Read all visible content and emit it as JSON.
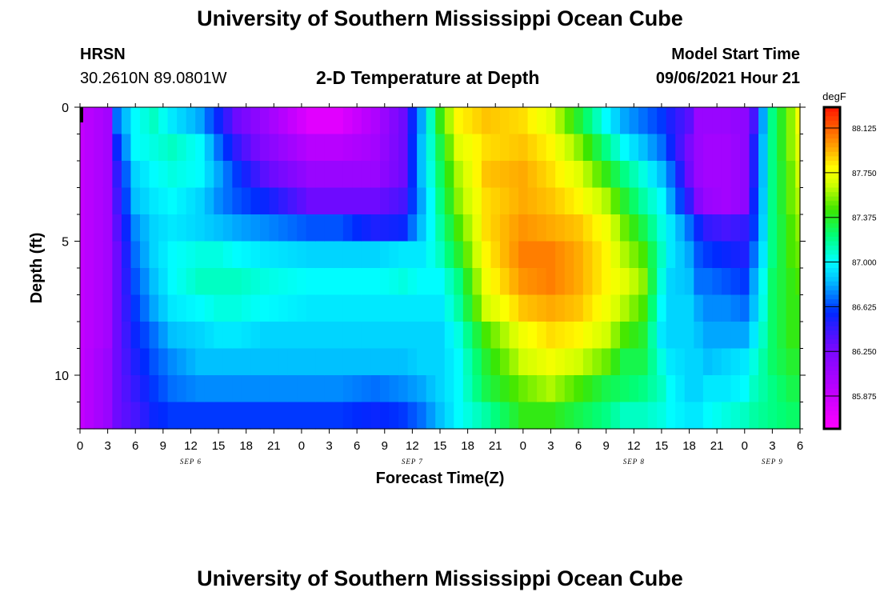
{
  "header": {
    "title": "University of Southern Mississippi Ocean Cube",
    "station": "HRSN",
    "coords": "30.2610N  89.0801W",
    "plot_title": "2-D Temperature at Depth",
    "model_start_label": "Model Start Time",
    "model_start_value": "09/06/2021 Hour 21"
  },
  "footer": {
    "title": "University of Southern Mississippi Ocean Cube"
  },
  "chart_data": {
    "type": "heatmap",
    "title": "2-D Temperature at Depth",
    "xlabel": "Forecast Time(Z)",
    "ylabel": "Depth (ft)",
    "x_ticks": [
      "0",
      "3",
      "6",
      "9",
      "12",
      "15",
      "18",
      "21",
      "0",
      "3",
      "6",
      "9",
      "12",
      "15",
      "18",
      "21",
      "0",
      "3",
      "6",
      "9",
      "12",
      "15",
      "18",
      "21",
      "0",
      "3",
      "6"
    ],
    "x_range_hours": [
      0,
      78
    ],
    "date_labels": [
      {
        "label": "SEP 6",
        "hour": 12
      },
      {
        "label": "SEP 7",
        "hour": 36
      },
      {
        "label": "SEP 8",
        "hour": 60
      },
      {
        "label": "SEP 9",
        "hour": 75
      }
    ],
    "y_ticks": [
      "0",
      "5",
      "10"
    ],
    "y_tick_values": [
      0,
      5,
      10
    ],
    "y_range_ft": [
      0,
      12
    ],
    "colorbar": {
      "unit": "degF",
      "min": 85.6,
      "max": 88.3,
      "ticks": [
        "88.125",
        "87.750",
        "87.375",
        "87.000",
        "86.625",
        "86.250",
        "85.875"
      ],
      "tick_values": [
        88.125,
        87.75,
        87.375,
        87.0,
        86.625,
        86.25,
        85.875
      ]
    },
    "depth_levels": 12,
    "time_steps": 79,
    "keyframes_hours": [
      0,
      3,
      4,
      6,
      8,
      10,
      13,
      15,
      17,
      20,
      25,
      28,
      32,
      35,
      37,
      39,
      41,
      44,
      48,
      51,
      54,
      57,
      59,
      61,
      63,
      64,
      66,
      67,
      68,
      70,
      72,
      73,
      75,
      77,
      78
    ],
    "keyframes_temp_degF": [
      [
        85.9,
        85.9,
        85.9,
        85.9,
        85.9,
        85.9,
        85.9,
        85.9,
        85.9,
        85.9,
        85.9,
        85.9
      ],
      [
        86.05,
        86.05,
        86.05,
        86.05,
        86.05,
        86.05,
        86.05,
        86.05,
        86.05,
        86.1,
        86.1,
        86.1
      ],
      [
        86.7,
        86.55,
        86.45,
        86.4,
        86.35,
        86.3,
        86.3,
        86.3,
        86.3,
        86.3,
        86.3,
        86.3
      ],
      [
        87.0,
        87.0,
        86.9,
        86.85,
        86.75,
        86.7,
        86.65,
        86.6,
        86.55,
        86.5,
        86.45,
        86.4
      ],
      [
        87.1,
        87.05,
        87.0,
        86.95,
        86.9,
        86.9,
        86.85,
        86.8,
        86.7,
        86.65,
        86.6,
        86.55
      ],
      [
        86.95,
        87.1,
        87.05,
        87.0,
        86.95,
        87.0,
        87.0,
        86.95,
        86.85,
        86.75,
        86.7,
        86.6
      ],
      [
        86.8,
        87.0,
        87.0,
        86.9,
        86.9,
        87.05,
        87.1,
        87.0,
        86.9,
        86.85,
        86.75,
        86.6
      ],
      [
        86.55,
        86.7,
        86.8,
        86.75,
        86.85,
        87.05,
        87.1,
        87.05,
        86.95,
        86.85,
        86.75,
        86.6
      ],
      [
        86.3,
        86.45,
        86.6,
        86.65,
        86.8,
        87.0,
        87.1,
        87.05,
        86.95,
        86.85,
        86.75,
        86.6
      ],
      [
        86.1,
        86.2,
        86.35,
        86.55,
        86.75,
        86.95,
        87.05,
        87.0,
        86.9,
        86.85,
        86.75,
        86.6
      ],
      [
        85.75,
        85.95,
        86.1,
        86.3,
        86.65,
        86.9,
        87.0,
        86.95,
        86.9,
        86.85,
        86.75,
        86.6
      ],
      [
        85.75,
        85.95,
        86.1,
        86.3,
        86.65,
        86.9,
        87.0,
        86.95,
        86.9,
        86.85,
        86.75,
        86.6
      ],
      [
        86.0,
        86.05,
        86.1,
        86.3,
        86.5,
        86.9,
        87.0,
        86.95,
        86.9,
        86.85,
        86.7,
        86.55
      ],
      [
        86.3,
        86.3,
        86.3,
        86.4,
        86.55,
        86.95,
        87.05,
        86.95,
        86.9,
        86.85,
        86.75,
        86.6
      ],
      [
        86.8,
        86.85,
        86.85,
        86.8,
        86.85,
        86.95,
        87.0,
        86.95,
        86.9,
        86.9,
        86.8,
        86.7
      ],
      [
        87.4,
        87.3,
        87.25,
        87.2,
        87.15,
        87.1,
        87.0,
        86.95,
        86.9,
        86.9,
        86.9,
        86.85
      ],
      [
        87.8,
        87.7,
        87.6,
        87.55,
        87.45,
        87.35,
        87.2,
        87.15,
        87.05,
        87.0,
        87.0,
        87.0
      ],
      [
        87.9,
        87.85,
        87.9,
        87.85,
        87.85,
        87.8,
        87.75,
        87.65,
        87.45,
        87.35,
        87.3,
        87.15
      ],
      [
        87.85,
        87.9,
        87.95,
        87.95,
        88.0,
        88.05,
        88.0,
        87.9,
        87.75,
        87.65,
        87.5,
        87.4
      ],
      [
        87.7,
        87.8,
        87.85,
        87.9,
        87.95,
        88.05,
        88.05,
        87.95,
        87.85,
        87.75,
        87.6,
        87.4
      ],
      [
        87.35,
        87.55,
        87.7,
        87.8,
        87.9,
        87.95,
        87.95,
        87.9,
        87.8,
        87.65,
        87.45,
        87.3
      ],
      [
        87.0,
        87.2,
        87.4,
        87.6,
        87.75,
        87.8,
        87.8,
        87.75,
        87.65,
        87.5,
        87.3,
        87.2
      ],
      [
        86.8,
        87.0,
        87.2,
        87.35,
        87.5,
        87.6,
        87.7,
        87.6,
        87.45,
        87.3,
        87.25,
        87.1
      ],
      [
        86.7,
        86.85,
        87.05,
        87.15,
        87.3,
        87.45,
        87.55,
        87.45,
        87.35,
        87.3,
        87.2,
        87.1
      ],
      [
        86.6,
        86.7,
        86.85,
        87.0,
        87.05,
        87.1,
        87.05,
        87.0,
        86.95,
        87.05,
        87.1,
        87.05
      ],
      [
        86.5,
        86.55,
        86.7,
        86.8,
        86.95,
        86.95,
        86.9,
        86.9,
        86.9,
        86.95,
        87.0,
        87.0
      ],
      [
        86.35,
        86.25,
        86.3,
        86.45,
        86.7,
        86.8,
        86.85,
        86.9,
        86.9,
        86.9,
        86.9,
        86.95
      ],
      [
        86.1,
        86.1,
        86.1,
        86.2,
        86.55,
        86.65,
        86.7,
        86.8,
        86.85,
        86.9,
        86.9,
        86.95
      ],
      [
        86.1,
        86.05,
        86.05,
        86.1,
        86.45,
        86.6,
        86.7,
        86.75,
        86.8,
        86.85,
        86.95,
        87.0
      ],
      [
        86.1,
        86.05,
        86.05,
        86.05,
        86.4,
        86.55,
        86.65,
        86.75,
        86.8,
        86.9,
        86.95,
        87.05
      ],
      [
        86.15,
        86.15,
        86.15,
        86.15,
        86.45,
        86.5,
        86.6,
        86.7,
        86.8,
        86.95,
        87.0,
        87.1
      ],
      [
        86.4,
        86.5,
        86.5,
        86.55,
        86.6,
        86.7,
        86.8,
        86.85,
        86.95,
        87.05,
        87.1,
        87.15
      ],
      [
        87.2,
        87.2,
        87.2,
        87.2,
        87.2,
        87.2,
        87.25,
        87.25,
        87.25,
        87.25,
        87.2,
        87.2
      ],
      [
        87.55,
        87.55,
        87.5,
        87.5,
        87.45,
        87.45,
        87.4,
        87.4,
        87.4,
        87.35,
        87.3,
        87.25
      ],
      [
        87.75,
        87.7,
        87.65,
        87.6,
        87.55,
        87.5,
        87.45,
        87.4,
        87.4,
        87.35,
        87.3,
        87.25
      ]
    ]
  }
}
